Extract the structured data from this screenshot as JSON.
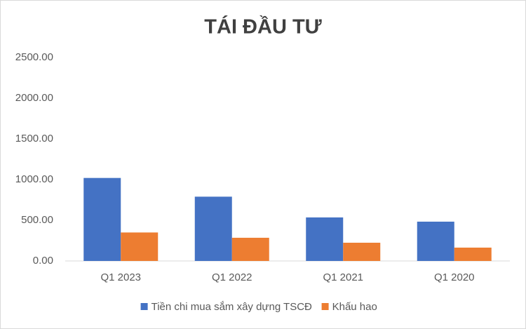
{
  "chart_data": {
    "type": "bar",
    "title": "TÁI ĐẦU TƯ",
    "categories": [
      "Q1 2023",
      "Q1 2022",
      "Q1 2021",
      "Q1 2020"
    ],
    "series": [
      {
        "name": "Tiền chi mua sắm xây dựng TSCĐ",
        "color": "#4472c4",
        "values": [
          1020,
          790,
          535,
          483
        ]
      },
      {
        "name": "Khấu hao",
        "color": "#ed7d31",
        "values": [
          350,
          285,
          224,
          164
        ]
      }
    ],
    "ylim": [
      0,
      2500
    ],
    "yticks": [
      {
        "value": 0,
        "label": "0.00"
      },
      {
        "value": 500,
        "label": "500.00"
      },
      {
        "value": 1000,
        "label": "1000.00"
      },
      {
        "value": 1500,
        "label": "1500.00"
      },
      {
        "value": 2000,
        "label": "2000.00"
      },
      {
        "value": 2500,
        "label": "2500.00"
      }
    ],
    "grid": false,
    "legend": "bottom"
  }
}
